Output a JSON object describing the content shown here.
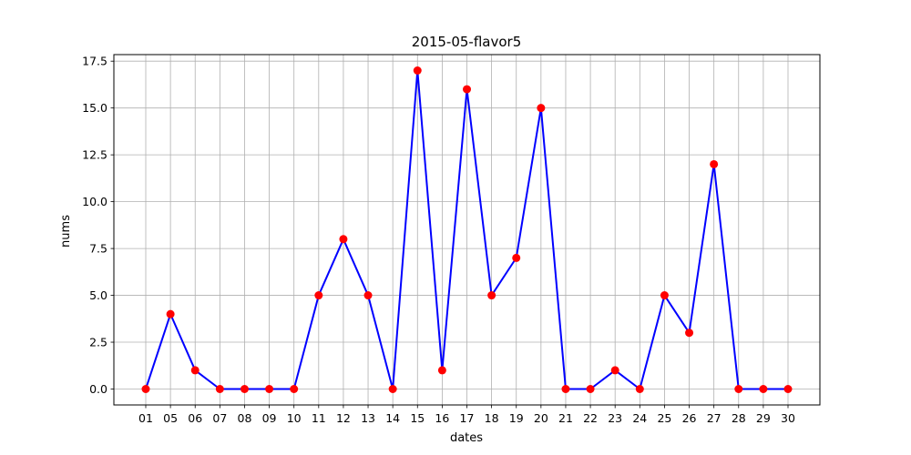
{
  "chart_data": {
    "type": "line",
    "title": "2015-05-flavor5",
    "xlabel": "dates",
    "ylabel": "nums",
    "categories": [
      "01",
      "05",
      "06",
      "07",
      "08",
      "09",
      "10",
      "11",
      "12",
      "13",
      "14",
      "15",
      "16",
      "17",
      "18",
      "19",
      "20",
      "21",
      "22",
      "23",
      "24",
      "25",
      "26",
      "27",
      "28",
      "29",
      "30"
    ],
    "series": [
      {
        "values": [
          0,
          4,
          1,
          0,
          0,
          0,
          0,
          5,
          8,
          5,
          0,
          17,
          1,
          16,
          5,
          7,
          15,
          0,
          0,
          1,
          0,
          5,
          3,
          12,
          0,
          0,
          0
        ],
        "line_color": "#0000ff",
        "marker_color": "#ff0000"
      }
    ],
    "ylim": [
      -0.85,
      17.85
    ],
    "yticks": [
      0.0,
      2.5,
      5.0,
      7.5,
      10.0,
      12.5,
      15.0,
      17.5
    ],
    "ytick_labels": [
      "0.0",
      "2.5",
      "5.0",
      "7.5",
      "10.0",
      "12.5",
      "15.0",
      "17.5"
    ],
    "grid": true,
    "grid_color": "#b0b0b0"
  }
}
